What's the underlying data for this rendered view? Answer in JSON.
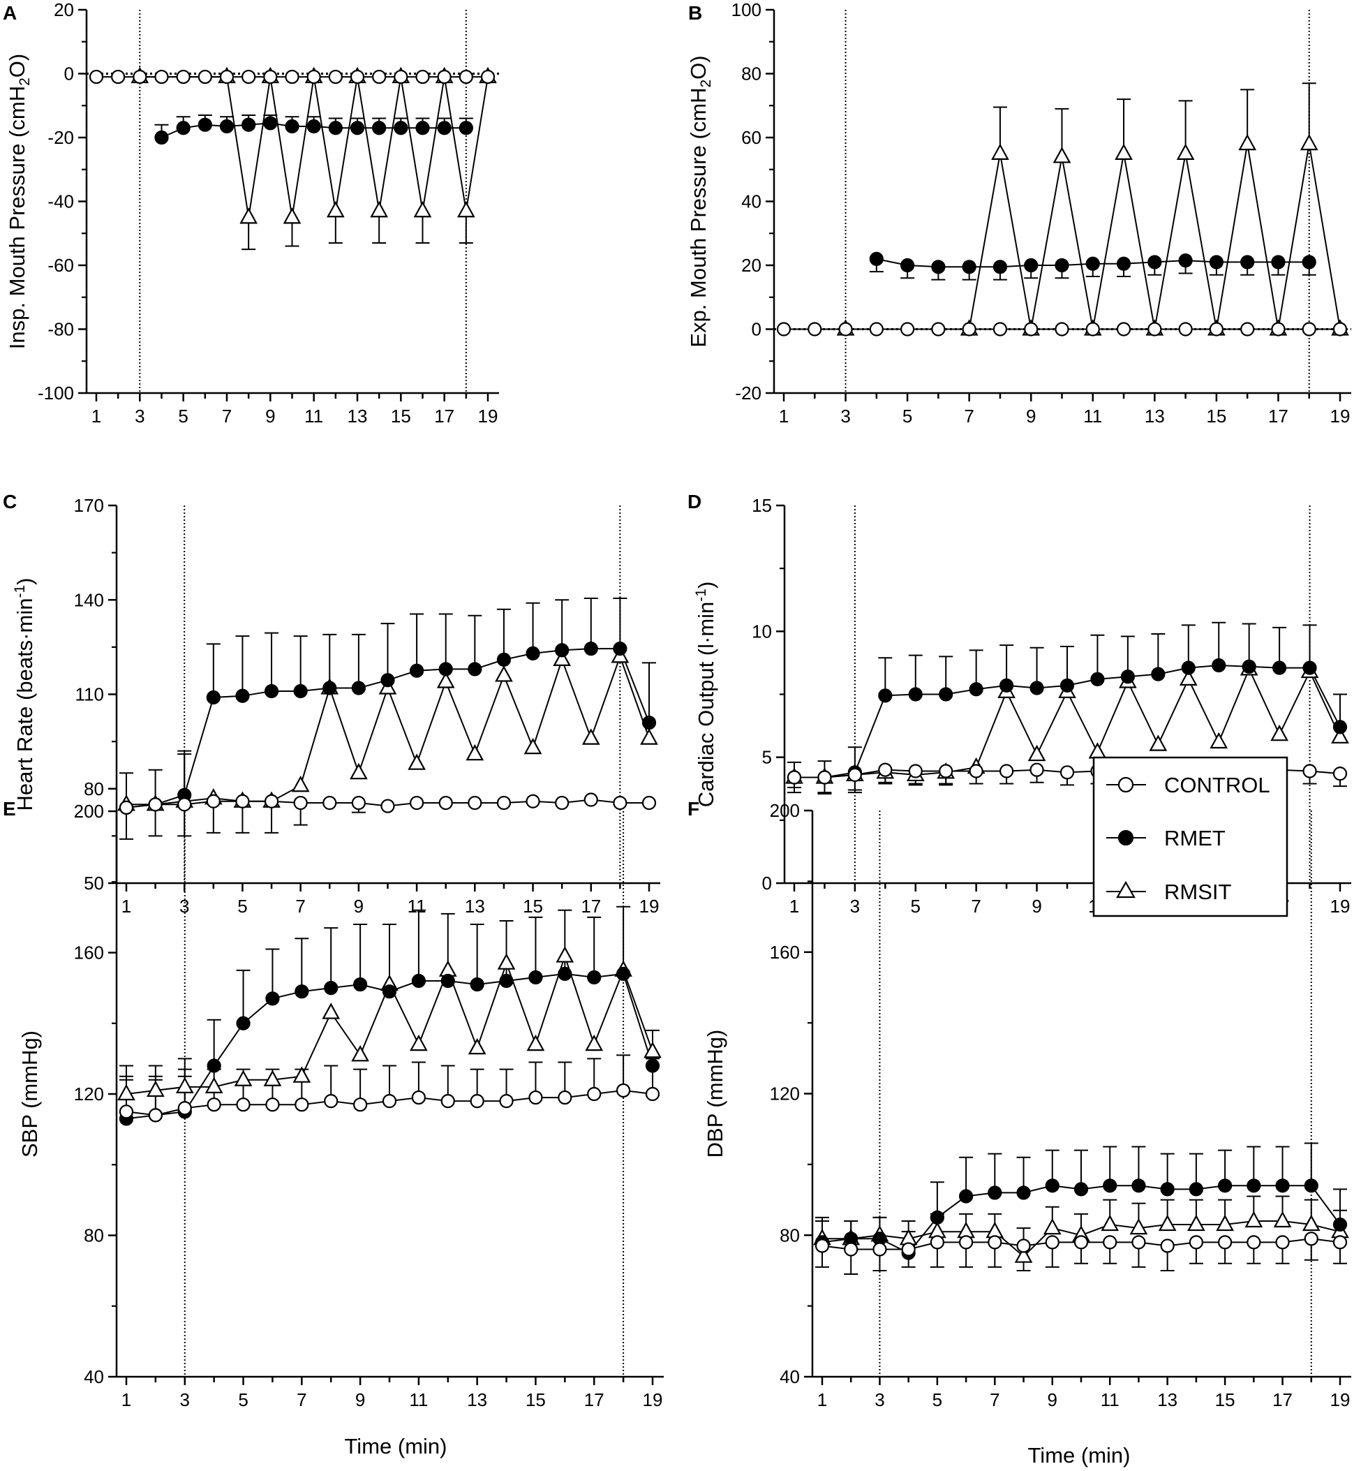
{
  "figure": {
    "x_axis_title": "Time (min)",
    "x_ticks": [
      1,
      3,
      5,
      7,
      9,
      11,
      13,
      15,
      17,
      19
    ],
    "event_lines_x": [
      3,
      18
    ],
    "legend": {
      "entries": [
        {
          "label": "CONTROL",
          "marker": "open-circle"
        },
        {
          "label": "RMET",
          "marker": "filled-circle"
        },
        {
          "label": "RMSIT",
          "marker": "open-triangle"
        }
      ]
    }
  },
  "chart_data": [
    {
      "panel": "A",
      "type": "line",
      "ylabel": "Insp. Mouth Pressure (cmH2O)",
      "ylabel_parts": [
        "Insp. Mouth Pressure (cmH",
        "2",
        "O)"
      ],
      "ylim": [
        -100,
        20
      ],
      "yticks": [
        20,
        0,
        -20,
        -40,
        -60,
        -80,
        -100
      ],
      "zero_line": true,
      "x": [
        1,
        2,
        3,
        4,
        5,
        6,
        7,
        8,
        9,
        10,
        11,
        12,
        13,
        14,
        15,
        16,
        17,
        18,
        19
      ],
      "series": [
        {
          "name": "CONTROL",
          "marker": "open-circle",
          "values": [
            -1,
            -1,
            -1,
            -1,
            -1,
            -1,
            -1,
            -1,
            -1,
            -1,
            -1,
            -1,
            -1,
            -1,
            -1,
            -1,
            -1,
            -1,
            -1
          ],
          "err": [
            0,
            0,
            0,
            0,
            0,
            0,
            0,
            0,
            0,
            0,
            0,
            0,
            0,
            0,
            0,
            0,
            0,
            0,
            0
          ],
          "err_dir": -1
        },
        {
          "name": "RMET",
          "marker": "filled-circle",
          "values": [
            null,
            null,
            null,
            -20,
            -17,
            -16,
            -16.5,
            -16,
            -15.5,
            -16.5,
            -16.5,
            -17,
            -17,
            -17,
            -17,
            -17,
            -17,
            -17,
            null
          ],
          "err": [
            0,
            0,
            0,
            4,
            3.5,
            3,
            3,
            3,
            2.5,
            3,
            3,
            3,
            3,
            3,
            3,
            3,
            3,
            3,
            0
          ],
          "err_dir": 1
        },
        {
          "name": "RMSIT",
          "marker": "open-triangle",
          "values": [
            null,
            null,
            -1,
            null,
            null,
            null,
            -1,
            -45,
            -1,
            -45,
            -1,
            -43,
            -1,
            -43,
            -1,
            -43,
            -1,
            -43,
            -1
          ],
          "err": [
            0,
            0,
            0,
            0,
            0,
            0,
            0,
            10,
            0,
            9,
            0,
            10,
            0,
            10,
            0,
            10,
            0,
            10,
            0
          ],
          "err_dir": -1
        }
      ]
    },
    {
      "panel": "B",
      "type": "line",
      "ylabel": "Exp. Mouth Pressure (cmH2O)",
      "ylabel_parts": [
        "Exp. Mouth Pressure (cmH",
        "2",
        "O)"
      ],
      "ylim": [
        -20,
        100
      ],
      "yticks": [
        100,
        80,
        60,
        40,
        20,
        0,
        -20
      ],
      "zero_line": true,
      "x": [
        1,
        2,
        3,
        4,
        5,
        6,
        7,
        8,
        9,
        10,
        11,
        12,
        13,
        14,
        15,
        16,
        17,
        18,
        19
      ],
      "series": [
        {
          "name": "CONTROL",
          "marker": "open-circle",
          "values": [
            0,
            0,
            0,
            0,
            0,
            0,
            0,
            0,
            0,
            0,
            0,
            0,
            0,
            0,
            0,
            0,
            0,
            0,
            0
          ],
          "err": [
            0,
            0,
            0,
            0,
            0,
            0,
            0,
            0,
            0,
            0,
            0,
            0,
            0,
            0,
            0,
            0,
            0,
            0,
            0
          ],
          "err_dir": 1
        },
        {
          "name": "RMET",
          "marker": "filled-circle",
          "values": [
            null,
            null,
            null,
            22,
            20,
            19.5,
            19.5,
            19.5,
            20,
            20,
            20.5,
            20.5,
            21,
            21.5,
            21,
            21,
            21,
            21,
            null
          ],
          "err": [
            0,
            0,
            0,
            4,
            4,
            4,
            4,
            4,
            4,
            4,
            4,
            4,
            4,
            4,
            4,
            4,
            4,
            4,
            0
          ],
          "err_dir": -1
        },
        {
          "name": "RMSIT",
          "marker": "open-triangle",
          "values": [
            null,
            null,
            0,
            null,
            null,
            null,
            0,
            55,
            0,
            54,
            0,
            55,
            0,
            55,
            0,
            58,
            0,
            58,
            0
          ],
          "err": [
            0,
            0,
            0,
            0,
            0,
            0,
            0,
            14.5,
            0,
            15,
            0,
            17,
            0,
            16.5,
            0,
            17,
            0,
            19,
            0
          ],
          "err_dir": 1
        }
      ]
    },
    {
      "panel": "C",
      "type": "line",
      "ylabel": "Heart Rate (beats·min-1)",
      "ylabel_parts": [
        "Heart Rate (beats·min",
        "-1",
        ")"
      ],
      "ylim": [
        50,
        170
      ],
      "yticks": [
        170,
        140,
        110,
        80,
        50
      ],
      "zero_line": false,
      "x": [
        1,
        2,
        3,
        4,
        5,
        6,
        7,
        8,
        9,
        10,
        11,
        12,
        13,
        14,
        15,
        16,
        17,
        18,
        19
      ],
      "series": [
        {
          "name": "CONTROL",
          "marker": "open-circle",
          "values": [
            74,
            75,
            75,
            76,
            76,
            76,
            75.5,
            75.5,
            75.5,
            74.5,
            75.5,
            75.5,
            75.5,
            75.5,
            76,
            75.5,
            76.5,
            75.5,
            75.5
          ],
          "err": [
            10,
            10,
            10,
            10,
            10,
            10,
            7,
            0,
            3,
            0,
            0,
            0,
            0,
            0,
            0,
            0,
            0,
            0,
            0
          ],
          "err_dir": -1
        },
        {
          "name": "RMET",
          "marker": "filled-circle",
          "values": [
            74,
            75,
            78,
            109,
            109.5,
            111,
            111,
            112,
            112,
            114.5,
            117.5,
            118,
            118,
            121,
            123,
            124,
            124.5,
            124.5,
            101
          ],
          "err": [
            0,
            0,
            14,
            17,
            19,
            18.5,
            17.5,
            17,
            17,
            18,
            18,
            17.5,
            17,
            16,
            16,
            16,
            16,
            16,
            19
          ],
          "err_dir": 1
        },
        {
          "name": "RMSIT",
          "marker": "open-triangle",
          "values": [
            75,
            75,
            76,
            77,
            76,
            76,
            81,
            112,
            85,
            112,
            88,
            114,
            91,
            116,
            93,
            121,
            96,
            122,
            96
          ],
          "err": [
            10,
            11,
            15,
            0,
            0,
            0,
            0,
            0,
            0,
            0,
            0,
            0,
            0,
            0,
            0,
            0,
            0,
            0,
            0
          ],
          "err_dir": 1
        }
      ]
    },
    {
      "panel": "D",
      "type": "line",
      "ylabel": "Cardiac Output (l·min-1)",
      "ylabel_parts": [
        "Cardiac Output (l·min",
        "-1",
        ")"
      ],
      "ylim": [
        0,
        15
      ],
      "yticks": [
        15,
        10,
        5,
        0
      ],
      "zero_line": false,
      "x": [
        1,
        2,
        3,
        4,
        5,
        6,
        7,
        8,
        9,
        10,
        11,
        12,
        13,
        14,
        15,
        16,
        17,
        18,
        19
      ],
      "series": [
        {
          "name": "CONTROL",
          "marker": "open-circle",
          "values": [
            4.2,
            4.2,
            4.3,
            4.5,
            4.45,
            4.45,
            4.45,
            4.45,
            4.5,
            4.4,
            4.45,
            4.45,
            4.45,
            4.4,
            4.5,
            4.5,
            4.5,
            4.45,
            4.35
          ],
          "err": [
            0.6,
            0.65,
            0.7,
            0.55,
            0.5,
            0.5,
            0.5,
            0.5,
            0.5,
            0.5,
            0.5,
            0.5,
            0.5,
            0.5,
            0.5,
            0.5,
            0.5,
            0.5,
            0.5
          ],
          "err_dir": -1
        },
        {
          "name": "RMET",
          "marker": "filled-circle",
          "values": [
            4.2,
            4.2,
            4.4,
            7.45,
            7.5,
            7.5,
            7.7,
            7.85,
            7.75,
            7.85,
            8.1,
            8.2,
            8.3,
            8.55,
            8.65,
            8.6,
            8.55,
            8.55,
            6.2
          ],
          "err": [
            0.6,
            0.65,
            1.0,
            1.5,
            1.55,
            1.5,
            1.55,
            1.6,
            1.6,
            1.55,
            1.75,
            1.6,
            1.6,
            1.7,
            1.7,
            1.7,
            1.6,
            1.7,
            1.3
          ],
          "err_dir": 1
        },
        {
          "name": "RMSIT",
          "marker": "open-triangle",
          "values": [
            4.2,
            4.2,
            4.3,
            4.4,
            4.3,
            4.4,
            4.6,
            7.6,
            5.1,
            7.6,
            5.2,
            8.0,
            5.5,
            8.1,
            5.6,
            8.5,
            5.9,
            8.4,
            5.8
          ],
          "err": [
            0.4,
            0.6,
            0.6,
            0.4,
            0.4,
            0.5,
            0,
            0,
            0,
            0,
            0,
            0,
            0,
            0,
            0,
            0,
            0,
            0,
            0
          ],
          "err_dir": -1
        }
      ]
    },
    {
      "panel": "E",
      "type": "line",
      "ylabel": "SBP (mmHg)",
      "ylabel_parts": [
        "SBP (mmHg)"
      ],
      "ylim": [
        40,
        200
      ],
      "yticks": [
        200,
        160,
        120,
        80,
        40
      ],
      "zero_line": false,
      "x": [
        1,
        2,
        3,
        4,
        5,
        6,
        7,
        8,
        9,
        10,
        11,
        12,
        13,
        14,
        15,
        16,
        17,
        18,
        19
      ],
      "series": [
        {
          "name": "CONTROL",
          "marker": "open-circle",
          "values": [
            115,
            114,
            116,
            117,
            117,
            117,
            117,
            118,
            117,
            118,
            119,
            118,
            118,
            118,
            119,
            119,
            120,
            121,
            120
          ],
          "err": [
            10,
            10,
            9,
            10,
            10,
            10,
            10,
            10,
            10,
            10,
            10,
            10,
            9,
            9,
            10,
            10,
            10,
            10,
            10
          ],
          "err_dir": 1
        },
        {
          "name": "RMET",
          "marker": "filled-circle",
          "values": [
            113,
            114,
            115,
            128,
            140,
            147,
            149,
            150,
            151,
            149,
            152,
            152,
            151,
            152,
            153,
            154,
            153,
            154,
            128
          ],
          "err": [
            11,
            11,
            12,
            13,
            15,
            14,
            15,
            17,
            17,
            19,
            20,
            19,
            17,
            17,
            17,
            18,
            17,
            19,
            10
          ],
          "err_dir": 1
        },
        {
          "name": "RMSIT",
          "marker": "open-triangle",
          "values": [
            120,
            121,
            122,
            122,
            124,
            124,
            125,
            143,
            131,
            151,
            134,
            155,
            133,
            157,
            134,
            159,
            134,
            155,
            132
          ],
          "err": [
            8,
            7,
            8,
            0,
            0,
            0,
            0,
            0,
            0,
            0,
            0,
            0,
            0,
            0,
            0,
            0,
            0,
            0,
            0
          ],
          "err_dir": 1
        }
      ]
    },
    {
      "panel": "F",
      "type": "line",
      "ylabel": "DBP (mmHg)",
      "ylabel_parts": [
        "DBP (mmHg)"
      ],
      "ylim": [
        40,
        200
      ],
      "yticks": [
        200,
        160,
        120,
        80,
        40
      ],
      "zero_line": false,
      "x": [
        1,
        2,
        3,
        4,
        5,
        6,
        7,
        8,
        9,
        10,
        11,
        12,
        13,
        14,
        15,
        16,
        17,
        18,
        19
      ],
      "series": [
        {
          "name": "CONTROL",
          "marker": "open-circle",
          "values": [
            77,
            76,
            76,
            76,
            78,
            78,
            78,
            77,
            78,
            78,
            78,
            78,
            77,
            78,
            78,
            78,
            78,
            79,
            78
          ],
          "err": [
            6,
            7,
            6,
            5,
            7,
            7,
            7,
            7,
            7,
            6,
            6,
            7,
            7,
            6,
            6,
            6,
            6,
            6,
            6
          ],
          "err_dir": -1
        },
        {
          "name": "RMET",
          "marker": "filled-circle",
          "values": [
            78,
            79,
            79,
            75,
            85,
            91,
            92,
            92,
            94,
            93,
            94,
            94,
            93,
            93,
            94,
            94,
            94,
            94,
            83
          ],
          "err": [
            6,
            5,
            6,
            6,
            10,
            11,
            11,
            10,
            10,
            11,
            11,
            11,
            10,
            10,
            10,
            11,
            11,
            12,
            10
          ],
          "err_dir": 1
        },
        {
          "name": "RMSIT",
          "marker": "open-triangle",
          "values": [
            79,
            79,
            80,
            79,
            81,
            81,
            81,
            74,
            82,
            80,
            83,
            82,
            83,
            83,
            83,
            84,
            84,
            83,
            81
          ],
          "err": [
            6,
            5,
            5,
            5,
            5,
            5,
            5,
            8,
            6,
            6,
            7,
            7,
            7,
            7,
            7,
            7,
            7,
            7,
            6
          ],
          "err_dir": 1
        }
      ]
    }
  ]
}
